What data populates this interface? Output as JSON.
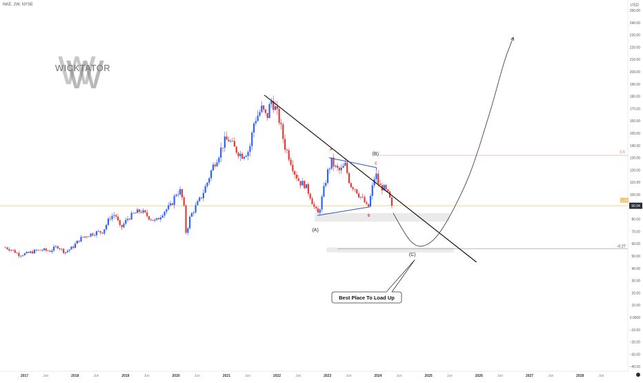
{
  "header": {
    "symbol_line": "NKE, 2W, NYSE",
    "currency": "USD"
  },
  "watermark": {
    "text": "WICKTATOR",
    "monogram": "W"
  },
  "colors": {
    "up_candle": "#2962ff",
    "down_candle": "#e53935",
    "trendline": "#111111",
    "projection": "#444444",
    "triangle": "#2f4fc4",
    "support_zone": "#e6e6e6",
    "fib_line": "#e6a0a0",
    "price_line": "#f5c26b",
    "callout_border": "#333333"
  },
  "price_tag": {
    "value": "90.94",
    "secondary": "1.73"
  },
  "annotations": {
    "wave_a": "(A)",
    "wave_b": "(B)",
    "wave_c": "(C)",
    "sub_a": "A",
    "sub_b": "B",
    "sub_c": "C",
    "fib_05": "0.5",
    "fib_027": "-0.27",
    "callout": "Best Place To Load Up"
  },
  "chart_data": {
    "type": "candlestick",
    "symbol": "NKE",
    "interval": "2W",
    "exchange": "NYSE",
    "title": "NKE, 2W, NYSE",
    "y_axis_ticks": [
      250,
      240,
      230,
      220,
      210,
      200,
      190,
      180,
      170,
      160,
      150,
      140,
      130,
      120,
      110,
      100,
      90,
      80,
      70,
      60,
      50,
      40,
      30,
      20,
      10,
      0,
      -10,
      -20,
      -30,
      -40
    ],
    "y_axis_labels": [
      "250.00",
      "240.00",
      "230.00",
      "220.00",
      "210.00",
      "200.00",
      "190.00",
      "180.00",
      "170.00",
      "160.00",
      "150.00",
      "140.00",
      "130.00",
      "120.00",
      "110.00",
      "100.00",
      "90.00",
      "80.00",
      "70.00",
      "60.00",
      "50.00",
      "40.00",
      "30.00",
      "20.00",
      "10.00",
      "0.0000",
      "−10.00",
      "−20.00",
      "−30.00",
      "−40.00"
    ],
    "ylim": [
      -45,
      255
    ],
    "x_axis_labels": [
      {
        "t": 2017.0,
        "label": "2017"
      },
      {
        "t": 2017.42,
        "label": "Jun"
      },
      {
        "t": 2018.0,
        "label": "2018"
      },
      {
        "t": 2018.42,
        "label": "Jun"
      },
      {
        "t": 2019.0,
        "label": "2019"
      },
      {
        "t": 2019.42,
        "label": "Jun"
      },
      {
        "t": 2020.0,
        "label": "2020"
      },
      {
        "t": 2020.42,
        "label": "Jun"
      },
      {
        "t": 2021.0,
        "label": "2021"
      },
      {
        "t": 2021.42,
        "label": "Jun"
      },
      {
        "t": 2022.0,
        "label": "2022"
      },
      {
        "t": 2022.42,
        "label": "Jun"
      },
      {
        "t": 2023.0,
        "label": "2023"
      },
      {
        "t": 2023.42,
        "label": "Jun"
      },
      {
        "t": 2024.0,
        "label": "2024"
      },
      {
        "t": 2024.42,
        "label": "Jun"
      },
      {
        "t": 2025.0,
        "label": "2025"
      },
      {
        "t": 2025.42,
        "label": "Jun"
      },
      {
        "t": 2026.0,
        "label": "2026"
      },
      {
        "t": 2026.42,
        "label": "Jun"
      },
      {
        "t": 2027.0,
        "label": "2027"
      },
      {
        "t": 2027.42,
        "label": "Jun"
      },
      {
        "t": 2028.0,
        "label": "2028"
      },
      {
        "t": 2028.42,
        "label": "Jun"
      }
    ],
    "xlim": [
      2016.62,
      2028.97
    ],
    "last_price": 90.94,
    "close_path": [
      [
        2016.62,
        57
      ],
      [
        2016.75,
        55
      ],
      [
        2016.9,
        51
      ],
      [
        2017.05,
        52
      ],
      [
        2017.2,
        54
      ],
      [
        2017.35,
        55
      ],
      [
        2017.5,
        54
      ],
      [
        2017.65,
        58
      ],
      [
        2017.8,
        53
      ],
      [
        2017.95,
        57
      ],
      [
        2018.1,
        64
      ],
      [
        2018.25,
        67
      ],
      [
        2018.4,
        69
      ],
      [
        2018.55,
        70
      ],
      [
        2018.7,
        82
      ],
      [
        2018.8,
        84
      ],
      [
        2018.9,
        72
      ],
      [
        2019.05,
        81
      ],
      [
        2019.2,
        85
      ],
      [
        2019.3,
        87
      ],
      [
        2019.45,
        82
      ],
      [
        2019.6,
        78
      ],
      [
        2019.75,
        86
      ],
      [
        2019.9,
        91
      ],
      [
        2020.0,
        101
      ],
      [
        2020.08,
        103
      ],
      [
        2020.15,
        93
      ],
      [
        2020.2,
        68
      ],
      [
        2020.28,
        82
      ],
      [
        2020.36,
        88
      ],
      [
        2020.5,
        98
      ],
      [
        2020.62,
        110
      ],
      [
        2020.72,
        122
      ],
      [
        2020.85,
        133
      ],
      [
        2020.95,
        143
      ],
      [
        2021.05,
        145
      ],
      [
        2021.15,
        138
      ],
      [
        2021.3,
        132
      ],
      [
        2021.45,
        136
      ],
      [
        2021.55,
        160
      ],
      [
        2021.7,
        170
      ],
      [
        2021.8,
        162
      ],
      [
        2021.88,
        177
      ],
      [
        2021.95,
        172
      ],
      [
        2022.05,
        160
      ],
      [
        2022.15,
        140
      ],
      [
        2022.25,
        130
      ],
      [
        2022.35,
        118
      ],
      [
        2022.45,
        110
      ],
      [
        2022.55,
        108
      ],
      [
        2022.65,
        100
      ],
      [
        2022.75,
        88
      ],
      [
        2022.82,
        84
      ],
      [
        2022.9,
        99
      ],
      [
        2023.0,
        118
      ],
      [
        2023.08,
        127
      ],
      [
        2023.15,
        122
      ],
      [
        2023.25,
        119
      ],
      [
        2023.35,
        124
      ],
      [
        2023.45,
        108
      ],
      [
        2023.55,
        105
      ],
      [
        2023.62,
        100
      ],
      [
        2023.72,
        95
      ],
      [
        2023.8,
        88
      ],
      [
        2023.88,
        104
      ],
      [
        2023.95,
        118
      ],
      [
        2024.02,
        107
      ],
      [
        2024.12,
        105
      ],
      [
        2024.2,
        100
      ],
      [
        2024.27,
        92
      ],
      [
        2024.31,
        90.94
      ]
    ],
    "trendline_desc": [
      [
        2021.75,
        181
      ],
      [
        2025.95,
        45
      ]
    ],
    "triangle_upper": [
      [
        2023.03,
        130
      ],
      [
        2023.97,
        122
      ]
    ],
    "triangle_lower": [
      [
        2022.8,
        83
      ],
      [
        2023.84,
        90
      ]
    ],
    "projection_path": [
      [
        2024.3,
        85
      ],
      [
        2024.65,
        62
      ],
      [
        2024.95,
        59
      ],
      [
        2025.3,
        74
      ],
      [
        2025.8,
        115
      ],
      [
        2026.2,
        165
      ],
      [
        2026.5,
        208
      ],
      [
        2026.68,
        228
      ]
    ],
    "support_zone_a": {
      "t0": 2022.75,
      "t1": 2025.42,
      "y0": 78,
      "y1": 85
    },
    "support_zone_c": {
      "t0": 2022.98,
      "t1": 2025.5,
      "y0": 53,
      "y1": 57
    },
    "fib_levels": [
      {
        "label": "0.5",
        "value": 132
      },
      {
        "label": "-0.27",
        "value": 56
      }
    ]
  }
}
